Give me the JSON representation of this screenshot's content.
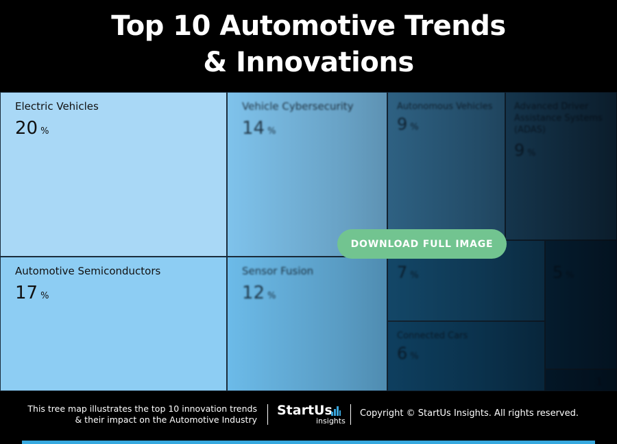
{
  "title_line1": "Top 10 Automotive Trends",
  "title_line2": "& Innovations",
  "chart_data": {
    "type": "treemap",
    "unit": "%",
    "items": [
      {
        "name": "Electric Vehicles",
        "value": 20,
        "color": "#a9d8f6"
      },
      {
        "name": "Automotive Semiconductors",
        "value": 17,
        "color": "#8dcdf3"
      },
      {
        "name": "Vehicle Cybersecurity",
        "value": 14,
        "color": "#7fc3ec"
      },
      {
        "name": "Sensor Fusion",
        "value": 12,
        "color": "#6cbbe9"
      },
      {
        "name": "Autonomous Vehicles",
        "value": 9,
        "color": "#3f81ab"
      },
      {
        "name": "Advanced Driver Assistance Systems (ADAS)",
        "value": 9,
        "color": "#2b6388"
      },
      {
        "name": "",
        "value": 7,
        "color": "#1a5d86"
      },
      {
        "name": "Connected Cars",
        "value": 6,
        "color": "#13527a"
      },
      {
        "name": "",
        "value": 5,
        "color": "#0c3a5a"
      },
      {
        "name": "",
        "value": 1,
        "color": "#082d48"
      }
    ]
  },
  "button_label": "DOWNLOAD FULL IMAGE",
  "footer": {
    "desc_line1": "This tree map illustrates the top 10 innovation trends",
    "desc_line2": "& their impact on the Automotive Industry",
    "logo_main": "StartUs",
    "logo_sub": "insights",
    "copyright": "Copyright © StartUs Insights. All rights reserved."
  },
  "colors": {
    "accent_bar": "#37a9df",
    "button": "#72c490"
  }
}
